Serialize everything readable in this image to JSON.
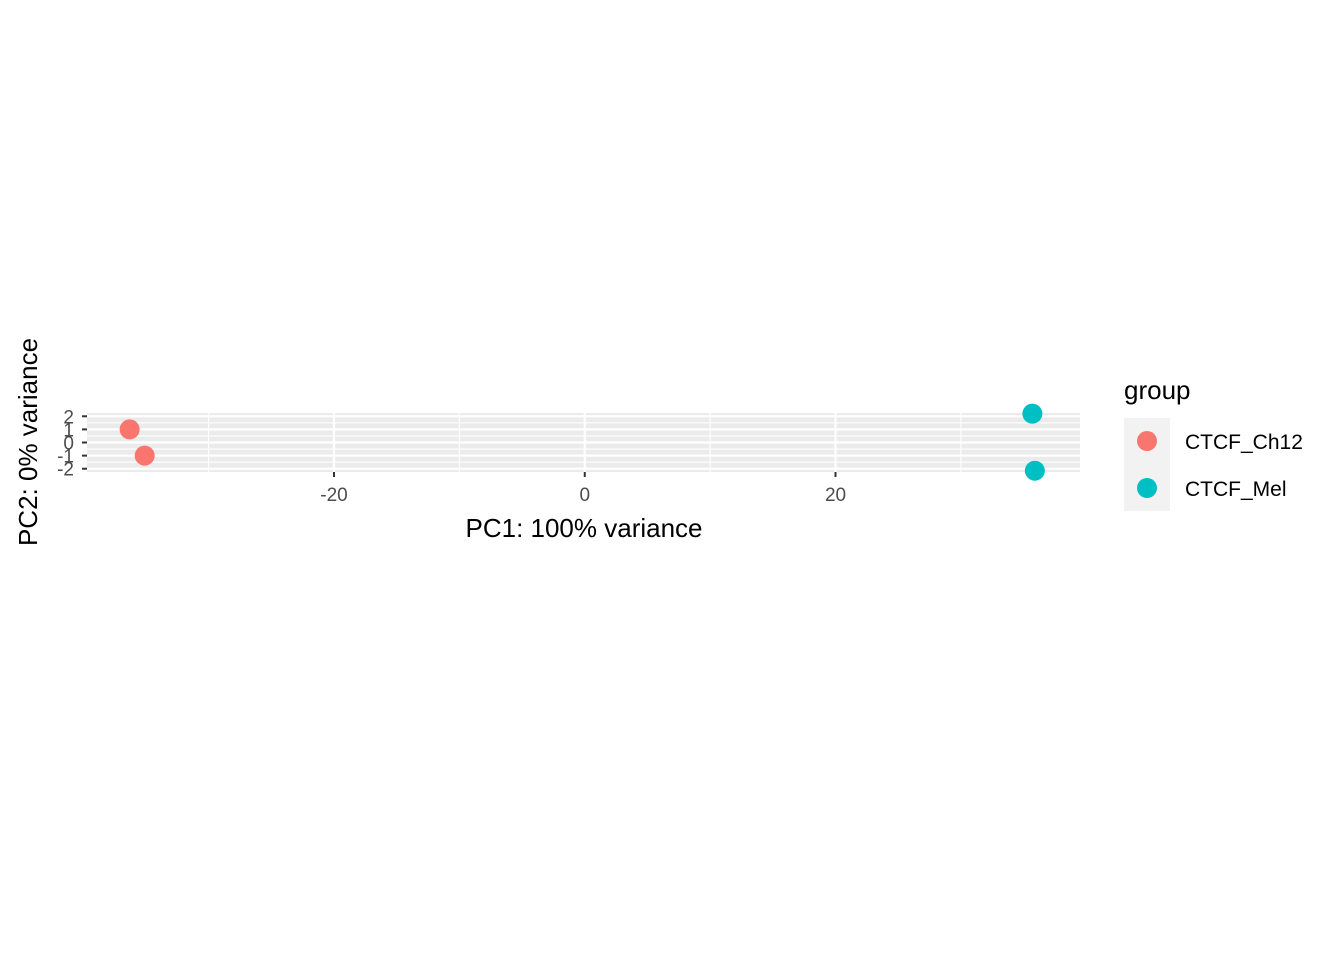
{
  "chart_data": {
    "type": "scatter",
    "xlabel": "PC1: 100% variance",
    "ylabel": "PC2: 0% variance",
    "xlim": [
      -39.7,
      39.5
    ],
    "ylim": [
      -2.25,
      2.25
    ],
    "x_ticks": [
      -20,
      0,
      20
    ],
    "x_tick_labels": [
      "-20",
      "0",
      "20"
    ],
    "x_minor_ticks": [
      -30,
      -10,
      10,
      30
    ],
    "y_ticks": [
      2,
      1,
      0,
      -1,
      -2
    ],
    "y_tick_labels": [
      "2",
      "1",
      "0",
      "-1",
      "-2"
    ],
    "y_minor_ticks": [
      1.5,
      0.5,
      -0.5,
      -1.5
    ],
    "grid": true,
    "legend": {
      "title": "group",
      "position": "right",
      "entries": [
        {
          "label": "CTCF_Ch12",
          "color": "#F8766D"
        },
        {
          "label": "CTCF_Mel",
          "color": "#00BFC4"
        }
      ]
    },
    "series": [
      {
        "name": "CTCF_Ch12",
        "color": "#F8766D",
        "points": [
          {
            "x": -36.3,
            "y": 1.0
          },
          {
            "x": -35.1,
            "y": -1.0
          }
        ]
      },
      {
        "name": "CTCF_Mel",
        "color": "#00BFC4",
        "points": [
          {
            "x": 35.7,
            "y": 2.2
          },
          {
            "x": 35.9,
            "y": -2.15
          }
        ]
      }
    ]
  }
}
